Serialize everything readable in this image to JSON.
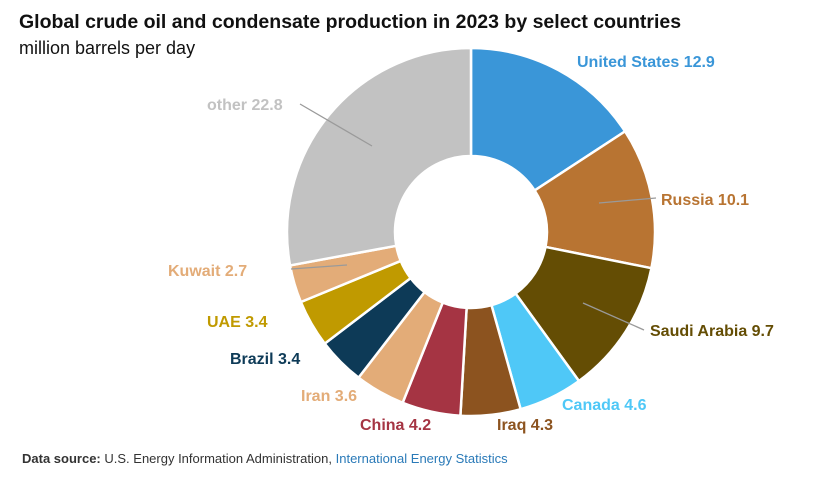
{
  "title": "Global crude oil and condensate production in 2023 by select countries",
  "subtitle": "million barrels per day",
  "footer": {
    "label": "Data source:",
    "source": "U.S. Energy Information Administration,",
    "link": "International Energy Statistics"
  },
  "chart_data": {
    "type": "pie",
    "donut": true,
    "units": "million barrels per day",
    "legend": "none",
    "slices": [
      {
        "label": "United States",
        "value": 12.9,
        "color": "#3a96d8",
        "text_color": "#3a96d8"
      },
      {
        "label": "Russia",
        "value": 10.1,
        "color": "#b87432",
        "text_color": "#b87432"
      },
      {
        "label": "Saudi Arabia",
        "value": 9.7,
        "color": "#644d04",
        "text_color": "#644d04"
      },
      {
        "label": "Canada",
        "value": 4.6,
        "color": "#4fc8f7",
        "text_color": "#4fc8f7"
      },
      {
        "label": "Iraq",
        "value": 4.3,
        "color": "#8c531f",
        "text_color": "#8c531f"
      },
      {
        "label": "China",
        "value": 4.2,
        "color": "#a53443",
        "text_color": "#a53443"
      },
      {
        "label": "Iran",
        "value": 3.6,
        "color": "#e3ac78",
        "text_color": "#e3ac78"
      },
      {
        "label": "Brazil",
        "value": 3.4,
        "color": "#0d3a57",
        "text_color": "#0d3a57"
      },
      {
        "label": "UAE",
        "value": 3.4,
        "color": "#c09a00",
        "text_color": "#c09a00"
      },
      {
        "label": "Kuwait",
        "value": 2.7,
        "color": "#e3ac78",
        "text_color": "#e3ac78"
      },
      {
        "label": "other",
        "value": 22.8,
        "color": "#c2c2c2",
        "text_color": "#c2c2c2"
      }
    ]
  }
}
